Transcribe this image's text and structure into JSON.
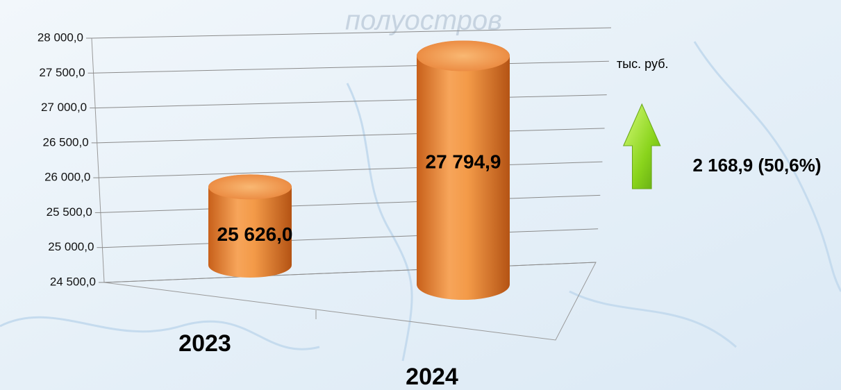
{
  "background_labels": [
    "полуостров"
  ],
  "chart_data": {
    "type": "bar",
    "categories": [
      "2023",
      "2024"
    ],
    "values": [
      25626.0,
      27794.9
    ],
    "value_labels": [
      "25 626,0",
      "27 794,9"
    ],
    "color": "#f0923c",
    "ylim": [
      24500,
      28000
    ],
    "yticks": [
      {
        "value": 24500,
        "label": "24 500,0"
      },
      {
        "value": 25000,
        "label": "25 000,0"
      },
      {
        "value": 25500,
        "label": "25 500,0"
      },
      {
        "value": 26000,
        "label": "26 000,0"
      },
      {
        "value": 26500,
        "label": "26 500,0"
      },
      {
        "value": 27000,
        "label": "27 000,0"
      },
      {
        "value": 27500,
        "label": "27 500,0"
      },
      {
        "value": 28000,
        "label": "28 000,0"
      }
    ],
    "grid": true,
    "unit_label": "тыс. руб.",
    "annotation": "2 168,9 (50,6%)"
  }
}
